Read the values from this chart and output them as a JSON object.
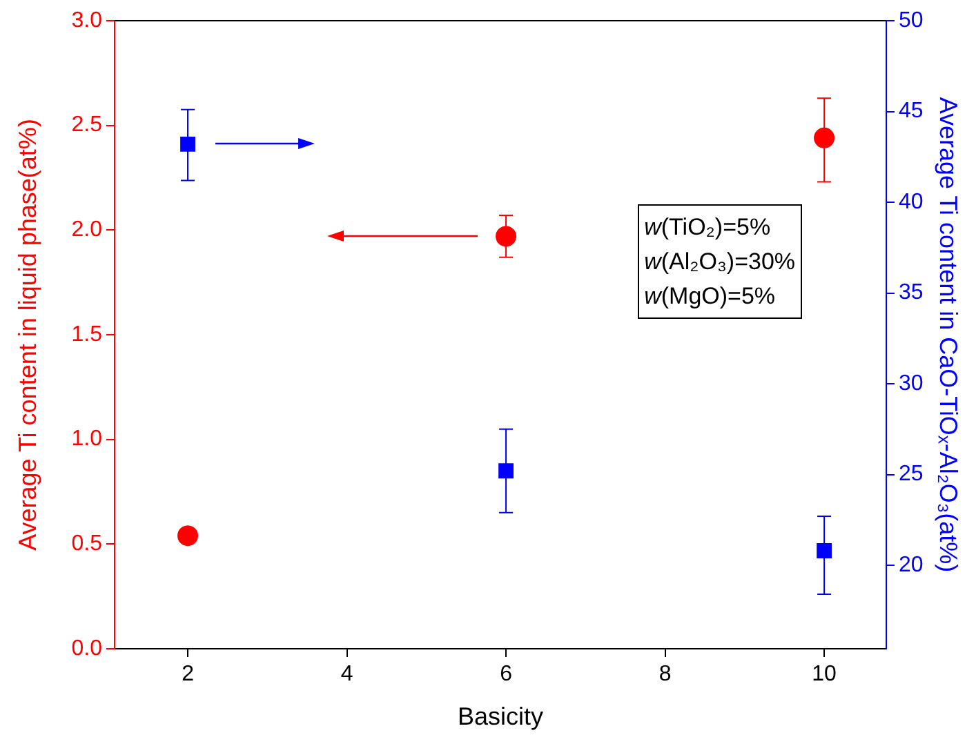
{
  "chart_data": {
    "type": "scatter",
    "xlabel": "Basicity",
    "ylabel": "Average Ti content in liquid phase(at%)",
    "y2label": "Average Ti content in CaO-TiOₓ-Al₂O₃(at%)",
    "xlim": [
      1.08,
      10.78
    ],
    "xticks": [
      2,
      4,
      6,
      8,
      10
    ],
    "ylim": [
      0,
      3
    ],
    "yticks": [
      {
        "value": 0,
        "label": "0.0"
      },
      0.5,
      {
        "value": 1,
        "label": "1.0"
      },
      1.5,
      {
        "value": 2,
        "label": "2.0"
      },
      2.5,
      {
        "value": 3,
        "label": "3.0"
      }
    ],
    "y2lim": [
      15.4,
      50
    ],
    "y2ticks": [
      20,
      25,
      30,
      35,
      40,
      45,
      50
    ],
    "grid": false,
    "legend": false,
    "series": [
      {
        "color": "#ff0000",
        "marker": "circle",
        "x": [
          2,
          6,
          10
        ],
        "values": [
          0.54,
          1.97,
          2.44
        ],
        "errors": [
          null,
          [
            1.87,
            2.07
          ],
          [
            2.23,
            2.63
          ]
        ]
      },
      {
        "color": "#0000ff",
        "marker": "square",
        "axis": "y2",
        "x": [
          2,
          6,
          10
        ],
        "values": [
          43.2,
          25.2,
          20.8
        ],
        "errors": [
          [
            41.2,
            45.1
          ],
          [
            22.9,
            27.5
          ],
          [
            18.4,
            22.7
          ]
        ]
      }
    ],
    "annotations": [
      "w(TiO₂)=5%",
      "w(Al₂O₃)=30%",
      "w(MgO)=5%"
    ]
  }
}
